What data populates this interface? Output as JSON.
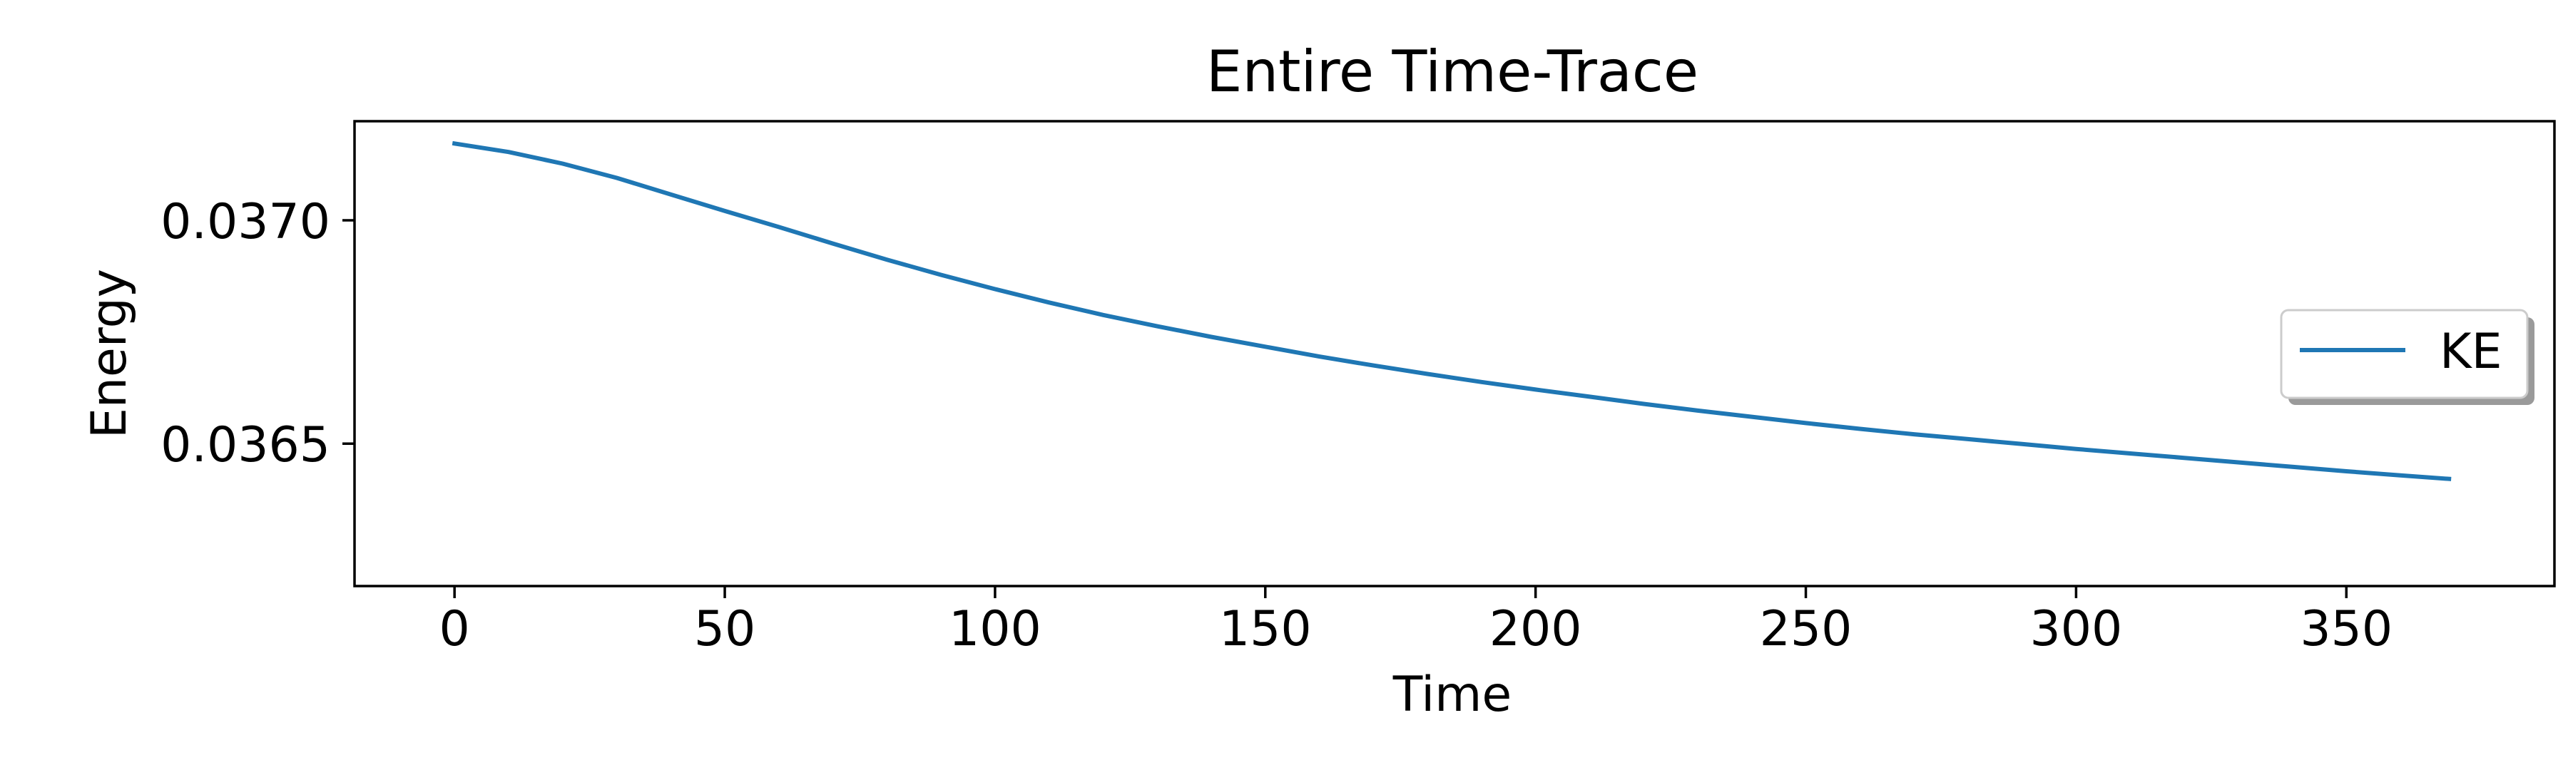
{
  "chart_data": {
    "type": "line",
    "title": "Entire Time-Trace",
    "xlabel": "Time",
    "ylabel": "Energy",
    "xlim": [
      -18.5,
      388.5
    ],
    "ylim": [
      0.036181,
      0.037222
    ],
    "xticks": [
      0,
      50,
      100,
      150,
      200,
      250,
      300,
      350
    ],
    "xtick_labels": [
      "0",
      "50",
      "100",
      "150",
      "200",
      "250",
      "300",
      "350"
    ],
    "yticks": [
      0.0365,
      0.037
    ],
    "ytick_labels": [
      "0.0365",
      "0.0370"
    ],
    "grid": false,
    "legend_position": "center-right",
    "series": [
      {
        "name": "KE",
        "color": "#1f77b4",
        "x": [
          0,
          10,
          20,
          30,
          40,
          50,
          60,
          70,
          80,
          90,
          100,
          110,
          120,
          130,
          140,
          150,
          160,
          170,
          180,
          190,
          200,
          210,
          220,
          230,
          240,
          250,
          260,
          270,
          280,
          290,
          300,
          310,
          320,
          330,
          340,
          350,
          360,
          369
        ],
        "y": [
          0.037172,
          0.037153,
          0.037127,
          0.037095,
          0.037058,
          0.037021,
          0.036985,
          0.036948,
          0.036912,
          0.036878,
          0.036846,
          0.036816,
          0.036788,
          0.036763,
          0.036739,
          0.036717,
          0.036695,
          0.036675,
          0.036656,
          0.036638,
          0.036621,
          0.036605,
          0.036589,
          0.036574,
          0.03656,
          0.036546,
          0.036533,
          0.036521,
          0.03651,
          0.036499,
          0.036488,
          0.036478,
          0.036468,
          0.036458,
          0.036448,
          0.036438,
          0.036429,
          0.036421
        ]
      }
    ]
  }
}
